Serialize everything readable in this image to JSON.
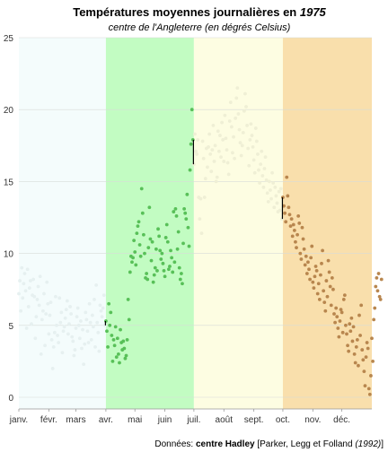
{
  "chart_data": {
    "type": "scatter",
    "title_main": "Températures moyennes journalières en ",
    "title_year": "1975",
    "subtitle": "centre de l'Angleterre (en dégrés Celsius)",
    "xlabel": "",
    "ylabel": "",
    "ylim": [
      0,
      25
    ],
    "y_ticks": [
      "0",
      "5",
      "10",
      "15",
      "20",
      "25"
    ],
    "x_ticks": [
      "janv.",
      "févr.",
      "mars",
      "avr.",
      "mai",
      "juin",
      "juil.",
      "août",
      "sept.",
      "oct.",
      "nov.",
      "déc."
    ],
    "grid": true,
    "seasons": [
      {
        "start_day": 1,
        "end_day": 91,
        "color": "#f4fcfc",
        "point_color": "#e6f0f0"
      },
      {
        "start_day": 91,
        "end_day": 182,
        "color": "#c2fcc2",
        "point_color": "#58c058"
      },
      {
        "start_day": 182,
        "end_day": 274,
        "color": "#fdfde2",
        "point_color": "#efefd5"
      },
      {
        "start_day": 274,
        "end_day": 366,
        "color": "#f9dfac",
        "point_color": "#b8864e"
      }
    ],
    "series": [
      {
        "values": [
          7.2,
          8.1,
          6.0,
          9.0,
          6.9,
          7.9,
          8.6,
          7.4,
          4.8,
          8.9,
          6.3,
          7.6,
          8.1,
          5.1,
          7.1,
          8.2,
          7.0,
          4.1,
          5.6,
          6.8,
          7.7,
          6.4,
          8.4,
          3.0,
          5.4,
          6.0,
          7.2,
          3.6,
          5.8,
          8.0,
          6.5,
          4.4,
          5.7,
          6.6,
          4.0,
          2.0,
          3.5,
          4.5,
          7.0,
          5.0,
          4.3,
          3.8,
          6.9,
          5.2,
          5.9,
          3.1,
          4.6,
          4.9,
          5.5,
          6.1,
          6.7,
          4.4,
          5.1,
          6.3,
          5.8,
          4.2,
          3.9,
          2.9,
          3.3,
          4.8,
          5.6,
          6.2,
          5.0,
          4.1,
          5.3,
          3.4,
          4.7,
          2.3,
          3.7,
          5.9,
          5.4,
          4.6,
          3.8,
          6.5,
          5.2,
          4.0,
          5.7,
          4.9,
          6.8,
          3.5,
          7.8,
          5.2,
          4.5,
          3.2,
          6.4,
          6.0,
          5.6,
          6.2,
          7.1,
          5.0,
          5.3,
          4.6,
          3.5,
          6.5,
          5.0,
          5.9,
          4.3,
          2.5,
          4.0,
          3.6,
          4.9,
          2.8,
          4.1,
          3.0,
          2.4,
          4.7,
          3.8,
          3.3,
          3.9,
          3.4,
          2.7,
          2.9,
          4.0,
          6.8,
          5.4,
          8.7,
          9.8,
          9.4,
          9.7,
          10.9,
          10.1,
          9.2,
          11.4,
          11.9,
          12.2,
          10.6,
          9.8,
          14.5,
          12.8,
          11.3,
          10.0,
          8.3,
          8.6,
          8.2,
          10.4,
          13.2,
          11.0,
          9.5,
          10.8,
          8.0,
          8.5,
          9.0,
          10.3,
          8.8,
          11.7,
          11.2,
          10.2,
          9.6,
          10.0,
          9.3,
          8.8,
          8.4,
          11.1,
          12.0,
          10.8,
          8.9,
          9.1,
          10.2,
          9.7,
          8.7,
          12.9,
          9.4,
          13.1,
          12.6,
          10.3,
          11.5,
          9.0,
          8.2,
          8.6,
          7.9,
          10.7,
          13.1,
          12.8,
          12.4,
          14.1,
          11.8,
          10.5,
          15.8,
          17.6,
          20.0,
          17.9,
          16.2,
          18.3,
          17.1,
          16.9,
          17.9,
          13.9,
          12.4,
          13.8,
          11.4,
          17.8,
          16.6,
          13.9,
          15.2,
          17.3,
          16.0,
          17.4,
          18.3,
          16.9,
          15.7,
          17.2,
          18.9,
          16.4,
          17.5,
          15.0,
          15.3,
          18.5,
          17.1,
          18.2,
          16.7,
          19.1,
          17.9,
          16.4,
          19.6,
          18.0,
          17.2,
          16.3,
          15.5,
          19.2,
          20.5,
          18.8,
          17.0,
          18.1,
          16.6,
          19.4,
          20.8,
          21.5,
          19.7,
          18.6,
          17.7,
          16.8,
          17.5,
          18.4,
          19.9,
          21.1,
          20.2,
          18.9,
          17.3,
          16.1,
          17.9,
          19.0,
          18.2,
          17.4,
          16.5,
          15.6,
          18.7,
          17.8,
          16.9,
          15.8,
          14.9,
          16.2,
          17.1,
          15.4,
          14.6,
          15.9,
          16.7,
          15.1,
          14.2,
          13.6,
          15.0,
          14.4,
          13.8,
          15.6,
          14.9,
          13.2,
          14.6,
          14.0,
          13.5,
          12.9,
          14.3,
          13.0,
          14.5,
          12.4,
          13.9,
          13.3,
          12.8,
          12.2,
          15.3,
          14.0,
          13.2,
          12.7,
          11.9,
          12.4,
          11.2,
          12.0,
          11.6,
          10.8,
          10.4,
          11.3,
          12.6,
          12.1,
          10.0,
          9.6,
          11.8,
          11.0,
          10.3,
          9.2,
          9.8,
          8.6,
          9.4,
          8.9,
          8.2,
          9.7,
          10.5,
          8.0,
          7.6,
          8.4,
          9.1,
          8.8,
          7.2,
          7.9,
          6.8,
          8.5,
          9.3,
          10.2,
          7.4,
          6.6,
          6.0,
          8.1,
          7.0,
          9.5,
          8.7,
          7.7,
          6.4,
          8.3,
          7.5,
          5.8,
          5.2,
          6.2,
          5.6,
          4.8,
          4.2,
          5.3,
          6.1,
          5.9,
          4.5,
          6.8,
          7.1,
          5.0,
          4.4,
          3.6,
          3.2,
          5.1,
          4.6,
          5.5,
          3.9,
          4.9,
          3.0,
          2.4,
          3.5,
          4.0,
          2.2,
          5.7,
          4.3,
          6.4,
          3.3,
          2.6,
          1.8,
          0.8,
          2.8,
          3.8,
          3.4,
          0.6,
          0.2,
          1.5,
          4.1,
          2.5,
          5.4,
          6.2,
          7.7,
          8.3,
          7.4,
          8.6,
          7.0,
          6.8,
          8.2
        ]
      }
    ]
  },
  "source": {
    "label": "Données: ",
    "bold": "centre Hadley",
    "text": " [Parker, Legg et Folland ",
    "year": "(1992)",
    "end": "]"
  }
}
